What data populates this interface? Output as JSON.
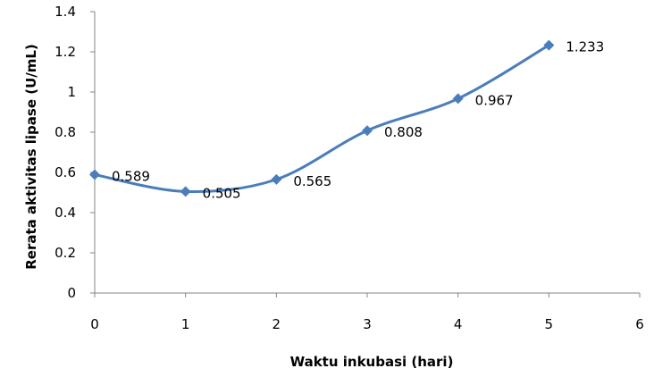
{
  "chart_data": {
    "type": "line",
    "title": "",
    "xlabel": "Waktu inkubasi (hari)",
    "ylabel": "Rerata aktivitas lipase (U/mL)",
    "xlim": [
      0,
      6
    ],
    "ylim": [
      0,
      1.4
    ],
    "x_ticks": [
      "0",
      "1",
      "2",
      "3",
      "4",
      "5",
      "6"
    ],
    "y_ticks": [
      "0",
      "0.2",
      "0.4",
      "0.6",
      "0.8",
      "1",
      "1.2",
      "1.4"
    ],
    "grid": false,
    "legend": "none",
    "series": [
      {
        "color": "#4A7EBB",
        "marker": "diamond",
        "smooth": true,
        "x": [
          0,
          1,
          2,
          3,
          4,
          5
        ],
        "y": [
          0.589,
          0.505,
          0.565,
          0.808,
          0.967,
          1.233
        ],
        "labels": [
          "0.589",
          "0.505",
          "0.565",
          "0.808",
          "0.967",
          "1.233"
        ]
      }
    ]
  }
}
